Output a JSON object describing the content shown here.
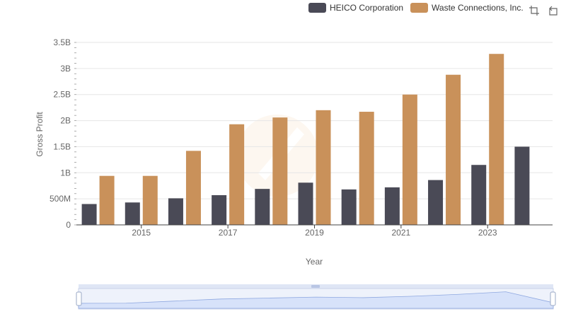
{
  "chart_data": {
    "type": "bar",
    "xlabel": "Year",
    "ylabel": "Gross Profit",
    "ylim": [
      0,
      3500000000
    ],
    "y_ticks": [
      {
        "value": 0,
        "label": "0"
      },
      {
        "value": 500000000,
        "label": "500M"
      },
      {
        "value": 1000000000,
        "label": "1B"
      },
      {
        "value": 1500000000,
        "label": "1.5B"
      },
      {
        "value": 2000000000,
        "label": "2B"
      },
      {
        "value": 2500000000,
        "label": "2.5B"
      },
      {
        "value": 3000000000,
        "label": "3B"
      },
      {
        "value": 3500000000,
        "label": "3.5B"
      }
    ],
    "categories": [
      "2014",
      "2015",
      "2016",
      "2017",
      "2018",
      "2019",
      "2020",
      "2021",
      "2022",
      "2023",
      "2024"
    ],
    "x_tick_labels": [
      "2015",
      "2017",
      "2019",
      "2021",
      "2023"
    ],
    "legend_position": "top-right",
    "grid": true,
    "series": [
      {
        "name": "HEICO Corporation",
        "color": "#4a4a56",
        "values": [
          400000000,
          430000000,
          510000000,
          570000000,
          690000000,
          810000000,
          680000000,
          720000000,
          860000000,
          1150000000,
          1500000000
        ]
      },
      {
        "name": "Waste Connections, Inc.",
        "color": "#c9915a",
        "values": [
          940000000,
          940000000,
          1420000000,
          1930000000,
          2060000000,
          2200000000,
          2170000000,
          2500000000,
          2880000000,
          3280000000,
          null
        ]
      }
    ]
  },
  "toolbar": {
    "zoom_icon": "crop-icon",
    "restore_icon": "restore-icon"
  }
}
